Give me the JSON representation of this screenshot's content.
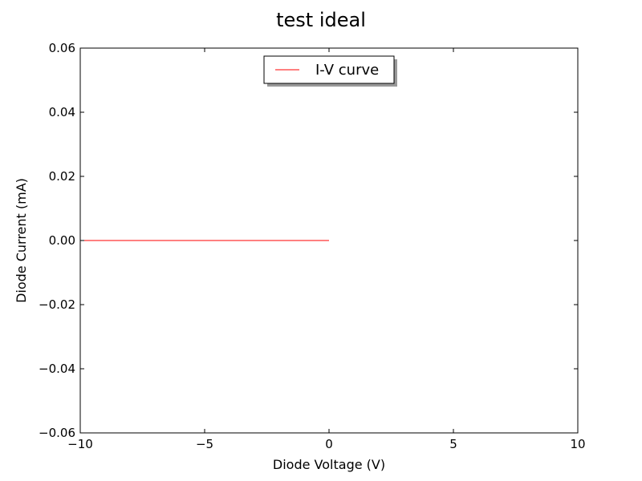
{
  "chart_data": {
    "type": "line",
    "title": "test ideal",
    "xlabel": "Diode Voltage (V)",
    "ylabel": "Diode Current (mA)",
    "xlim": [
      -10,
      10
    ],
    "ylim": [
      -0.06,
      0.06
    ],
    "xticks": [
      -10,
      -5,
      0,
      5,
      10
    ],
    "xtick_labels": [
      "−10",
      "−5",
      "0",
      "5",
      "10"
    ],
    "yticks": [
      -0.06,
      -0.04,
      -0.02,
      0.0,
      0.02,
      0.04,
      0.06
    ],
    "ytick_labels": [
      "−0.06",
      "−0.04",
      "−0.02",
      "0.00",
      "0.02",
      "0.04",
      "0.06"
    ],
    "grid": false,
    "legend_position": "top-center",
    "series": [
      {
        "name": "I-V curve",
        "color": "#ff0000",
        "x": [
          -10,
          -8,
          -6,
          -4,
          -2,
          0
        ],
        "y": [
          0,
          0,
          0,
          0,
          0,
          0
        ]
      }
    ]
  }
}
